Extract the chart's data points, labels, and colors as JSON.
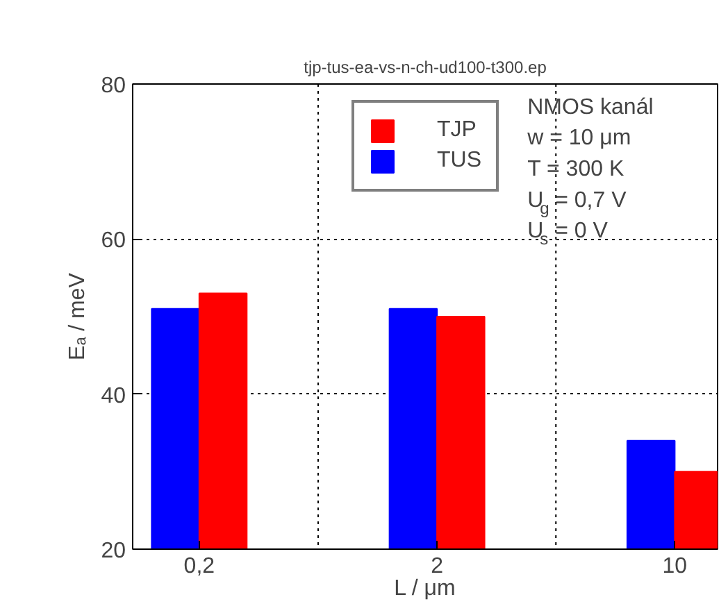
{
  "chart_data": {
    "type": "bar",
    "title": "tjp-tus-ea-vs-n-ch-ud100-t300.ep",
    "xlabel": "L / μm",
    "ylabel": "Eₐ / meV",
    "categories": [
      "0,2",
      "2",
      "10"
    ],
    "series": [
      {
        "name": "TUS",
        "color": "#0000ff",
        "values": [
          51,
          51,
          34
        ]
      },
      {
        "name": "TJP",
        "color": "#ff0000",
        "values": [
          53,
          50,
          30
        ]
      }
    ],
    "ylim": [
      20,
      80
    ],
    "yticks": [
      20,
      40,
      60,
      80
    ],
    "grid": true,
    "legend": "top",
    "annotations": [
      "NMOS kanál",
      "w = 10 μm",
      "T = 300 K",
      "U$_{g}$ = 0,7 V",
      "U$_{s}$ = 0 V"
    ]
  }
}
